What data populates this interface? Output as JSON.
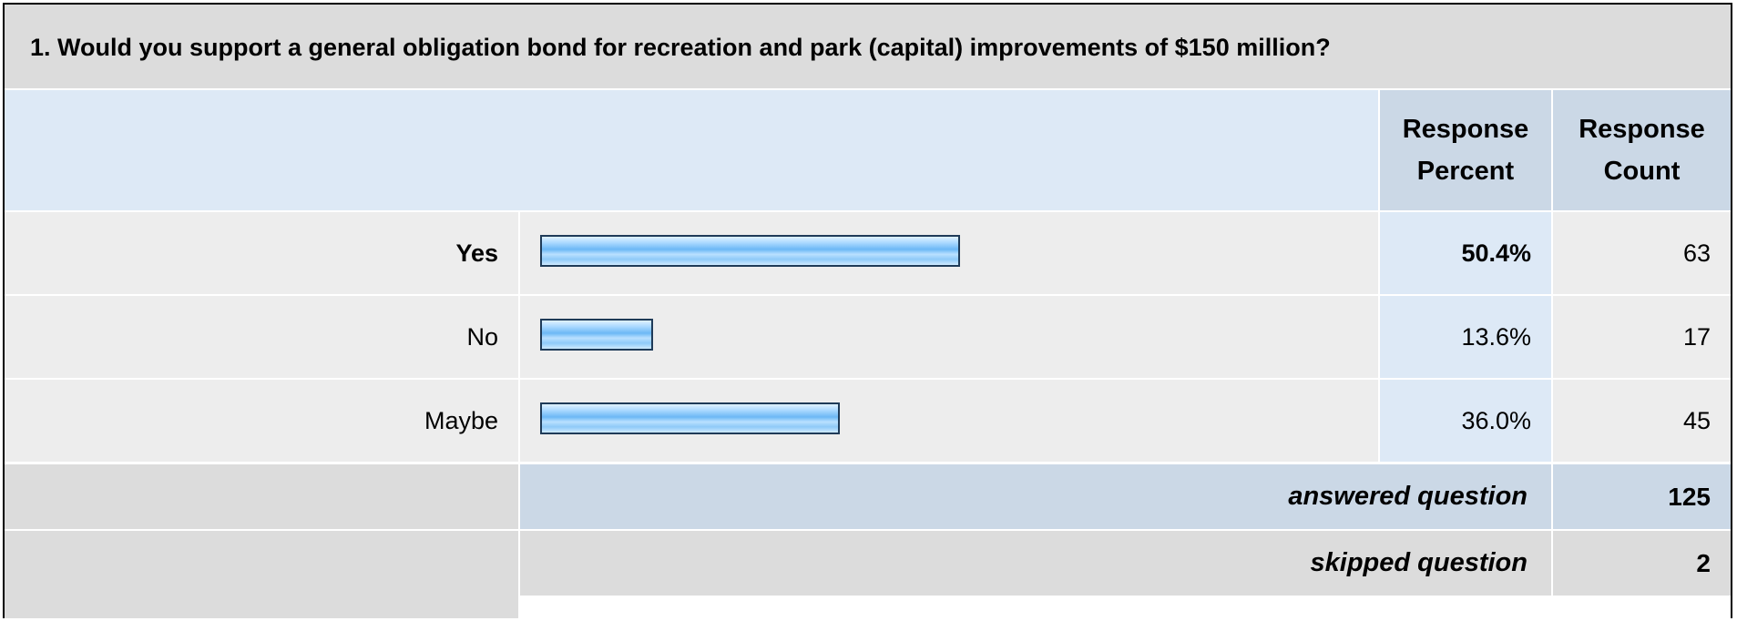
{
  "question": {
    "title": "1. Would you support a general obligation bond for recreation and park (capital) improvements of $150 million?"
  },
  "header": {
    "percent_line1": "Response",
    "percent_line2": "Percent",
    "count_line1": "Response",
    "count_line2": "Count"
  },
  "chart_data": {
    "type": "bar",
    "orientation": "horizontal",
    "categories": [
      "Yes",
      "No",
      "Maybe"
    ],
    "values": [
      50.4,
      13.6,
      36.0
    ],
    "percent_labels": [
      "50.4%",
      "13.6%",
      "36.0%"
    ],
    "counts": [
      "63",
      "17",
      "45"
    ],
    "xlim": [
      0,
      100
    ],
    "bar_color": "#8fcaf8",
    "grid": false
  },
  "summary": {
    "answered_label": "answered question",
    "answered_value": "125",
    "skipped_label": "skipped question",
    "skipped_value": "2"
  },
  "colors": {
    "header_bg": "#dcdcdc",
    "column_header_bg": "#cbd8e6",
    "percent_cell_bg": "#dde9f6",
    "row_bg": "#ededed"
  }
}
